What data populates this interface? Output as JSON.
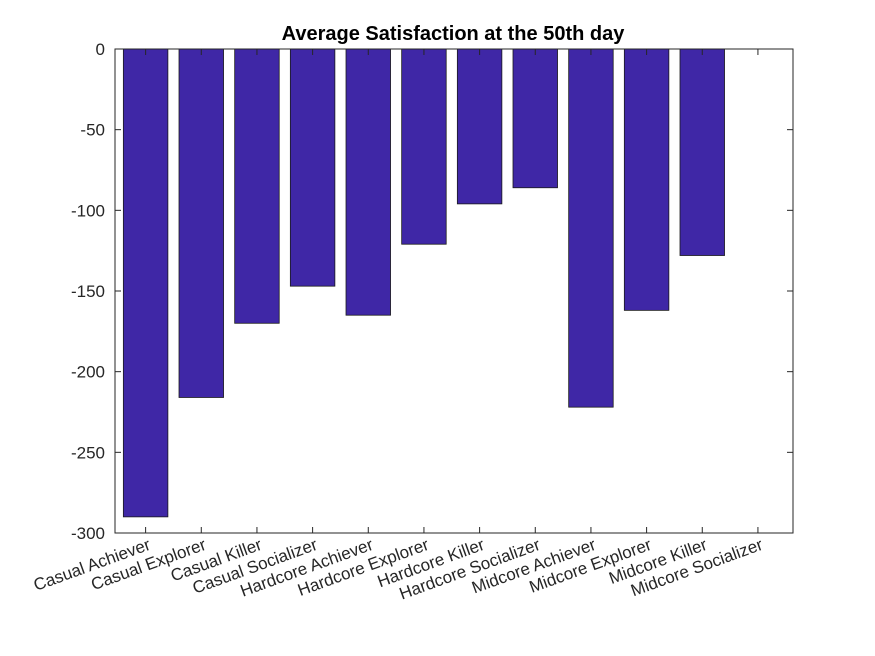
{
  "chart_data": {
    "type": "bar",
    "title": "Average Satisfaction at the 50th day",
    "xlabel": "",
    "ylabel": "",
    "categories": [
      "Casual Achiever",
      "Casual Explorer",
      "Casual Killer",
      "Casual Socializer",
      "Hardcore Achiever",
      "Hardcore Explorer",
      "Hardcore Killer",
      "Hardcore Socializer",
      "Midcore Achiever",
      "Midcore Explorer",
      "Midcore Killer",
      "Midcore Socializer"
    ],
    "values": [
      -290,
      -216,
      -170,
      -147,
      -165,
      -121,
      -96,
      -86,
      -222,
      -162,
      -128,
      0
    ],
    "ylim": [
      -300,
      0
    ],
    "yticks": [
      0,
      -50,
      -100,
      -150,
      -200,
      -250,
      -300
    ],
    "grid": false,
    "bar_color": "#3f27a6"
  }
}
